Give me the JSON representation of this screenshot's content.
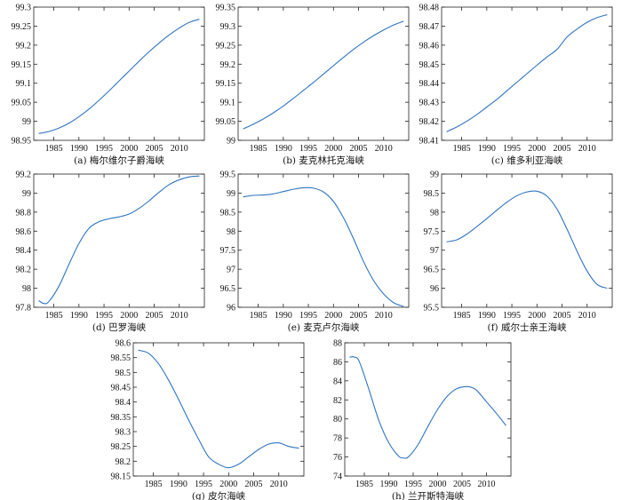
{
  "chart_data": [
    {
      "type": "line",
      "caption": "(a) 梅尔维尔子爵海峡",
      "xlim": [
        1981,
        2015
      ],
      "ylim": [
        98.95,
        99.3
      ],
      "xticks": [
        "1985",
        "1990",
        "1995",
        "2000",
        "2005",
        "2010"
      ],
      "yticks": [
        "98.95",
        "99",
        "99.05",
        "99.1",
        "99.15",
        "99.2",
        "99.25",
        "99.3"
      ],
      "series": [
        {
          "color": "#2f74c0",
          "x": [
            1982,
            1984,
            1986,
            1988,
            1990,
            1992,
            1994,
            1996,
            1998,
            2000,
            2002,
            2004,
            2006,
            2008,
            2010,
            2012,
            2014
          ],
          "y": [
            98.968,
            98.973,
            98.982,
            98.995,
            99.012,
            99.032,
            99.055,
            99.08,
            99.106,
            99.132,
            99.158,
            99.183,
            99.206,
            99.227,
            99.245,
            99.26,
            99.268
          ]
        }
      ]
    },
    {
      "type": "line",
      "caption": "(b) 麦克林托克海峡",
      "xlim": [
        1981,
        2015
      ],
      "ylim": [
        99,
        99.35
      ],
      "xticks": [
        "1985",
        "1990",
        "1995",
        "2000",
        "2005",
        "2010"
      ],
      "yticks": [
        "99",
        "99.05",
        "99.1",
        "99.15",
        "99.2",
        "99.25",
        "99.3",
        "99.35"
      ],
      "series": [
        {
          "color": "#2f74c0",
          "x": [
            1982,
            1984,
            1986,
            1988,
            1990,
            1992,
            1994,
            1996,
            1998,
            2000,
            2002,
            2004,
            2006,
            2008,
            2010,
            2012,
            2014
          ],
          "y": [
            99.03,
            99.042,
            99.056,
            99.072,
            99.09,
            99.11,
            99.131,
            99.152,
            99.174,
            99.196,
            99.218,
            99.239,
            99.258,
            99.275,
            99.29,
            99.303,
            99.313
          ]
        }
      ]
    },
    {
      "type": "line",
      "caption": "(c) 维多利亚海峡",
      "xlim": [
        1981,
        2015
      ],
      "ylim": [
        98.41,
        98.48
      ],
      "xticks": [
        "1985",
        "1990",
        "1995",
        "2000",
        "2005",
        "2010"
      ],
      "yticks": [
        "98.41",
        "98.42",
        "98.43",
        "98.44",
        "98.45",
        "98.46",
        "98.47",
        "98.48"
      ],
      "series": [
        {
          "color": "#2f74c0",
          "x": [
            1982,
            1984,
            1986,
            1988,
            1990,
            1992,
            1994,
            1996,
            1998,
            2000,
            2002,
            2004,
            2006,
            2008,
            2010,
            2012,
            2014
          ],
          "y": [
            98.4145,
            98.417,
            98.42,
            98.4235,
            98.4275,
            98.4315,
            98.436,
            98.4405,
            98.445,
            98.4495,
            98.4538,
            98.4578,
            98.4643,
            98.4685,
            98.472,
            98.4745,
            98.476
          ]
        }
      ]
    },
    {
      "type": "line",
      "caption": "(d) 巴罗海峡",
      "xlim": [
        1981,
        2015
      ],
      "ylim": [
        97.8,
        99.2
      ],
      "xticks": [
        "1985",
        "1990",
        "1995",
        "2000",
        "2005",
        "2010"
      ],
      "yticks": [
        "97.8",
        "98",
        "98.2",
        "98.4",
        "98.6",
        "98.8",
        "99",
        "99.2"
      ],
      "series": [
        {
          "color": "#2f74c0",
          "x": [
            1982,
            1983,
            1984,
            1986,
            1988,
            1990,
            1992,
            1994,
            1996,
            1998,
            2000,
            2002,
            2004,
            2006,
            2008,
            2010,
            2012,
            2014
          ],
          "y": [
            97.87,
            97.84,
            97.86,
            98.02,
            98.25,
            98.47,
            98.63,
            98.7,
            98.73,
            98.75,
            98.78,
            98.84,
            98.92,
            99.01,
            99.09,
            99.14,
            99.17,
            99.18
          ]
        }
      ]
    },
    {
      "type": "line",
      "caption": "(e) 麦克卢尔海峡",
      "xlim": [
        1981,
        2015
      ],
      "ylim": [
        96,
        99.5
      ],
      "xticks": [
        "1985",
        "1990",
        "1995",
        "2000",
        "2005",
        "2010"
      ],
      "yticks": [
        "96",
        "96.5",
        "97",
        "97.5",
        "98",
        "98.5",
        "99",
        "99.5"
      ],
      "series": [
        {
          "color": "#2f74c0",
          "x": [
            1982,
            1984,
            1986,
            1988,
            1990,
            1992,
            1994,
            1996,
            1998,
            2000,
            2002,
            2004,
            2006,
            2008,
            2010,
            2012,
            2014
          ],
          "y": [
            98.9,
            98.94,
            98.95,
            98.98,
            99.04,
            99.1,
            99.14,
            99.13,
            99.03,
            98.78,
            98.35,
            97.8,
            97.2,
            96.7,
            96.35,
            96.12,
            96.02
          ]
        }
      ]
    },
    {
      "type": "line",
      "caption": "(f) 威尔士亲王海峡",
      "xlim": [
        1981,
        2015
      ],
      "ylim": [
        95.5,
        99
      ],
      "xticks": [
        "1985",
        "1990",
        "1995",
        "2000",
        "2005",
        "2010"
      ],
      "yticks": [
        "95.5",
        "96",
        "96.5",
        "97",
        "97.5",
        "98",
        "98.5",
        "99"
      ],
      "series": [
        {
          "color": "#2f74c0",
          "x": [
            1982,
            1984,
            1986,
            1988,
            1990,
            1992,
            1994,
            1996,
            1998,
            2000,
            2002,
            2004,
            2006,
            2008,
            2010,
            2012,
            2014
          ],
          "y": [
            97.22,
            97.27,
            97.42,
            97.62,
            97.83,
            98.05,
            98.26,
            98.43,
            98.53,
            98.55,
            98.42,
            98.08,
            97.55,
            96.97,
            96.45,
            96.1,
            96.0
          ]
        }
      ]
    },
    {
      "type": "line",
      "caption": "(g) 皮尔海峡",
      "xlim": [
        1981,
        2015
      ],
      "ylim": [
        98.15,
        98.6
      ],
      "xticks": [
        "1985",
        "1990",
        "1995",
        "2000",
        "2005",
        "2010"
      ],
      "yticks": [
        "98.15",
        "98.2",
        "98.25",
        "98.3",
        "98.35",
        "98.4",
        "98.45",
        "98.5",
        "98.55",
        "98.6"
      ],
      "series": [
        {
          "color": "#2f74c0",
          "x": [
            1982,
            1984,
            1986,
            1988,
            1990,
            1992,
            1994,
            1996,
            1998,
            2000,
            2002,
            2004,
            2006,
            2008,
            2010,
            2012,
            2014
          ],
          "y": [
            98.575,
            98.565,
            98.53,
            98.475,
            98.41,
            98.34,
            98.275,
            98.215,
            98.19,
            98.178,
            98.19,
            98.215,
            98.24,
            98.258,
            98.262,
            98.25,
            98.244
          ]
        }
      ]
    },
    {
      "type": "line",
      "caption": "(h) 兰开斯特海峡",
      "xlim": [
        1981,
        2015
      ],
      "ylim": [
        74,
        88
      ],
      "xticks": [
        "1985",
        "1990",
        "1995",
        "2000",
        "2005",
        "2010"
      ],
      "yticks": [
        "74",
        "76",
        "78",
        "80",
        "82",
        "84",
        "86",
        "88"
      ],
      "series": [
        {
          "color": "#2f74c0",
          "x": [
            1982,
            1983,
            1984,
            1986,
            1988,
            1990,
            1992,
            1993,
            1994,
            1996,
            1998,
            2000,
            2002,
            2004,
            2006,
            2007,
            2008,
            2010,
            2012,
            2014
          ],
          "y": [
            86.5,
            86.5,
            86.0,
            83.0,
            79.8,
            77.5,
            76.1,
            75.9,
            76.0,
            77.3,
            79.2,
            81.0,
            82.4,
            83.2,
            83.4,
            83.3,
            83.0,
            81.8,
            80.6,
            79.3
          ]
        }
      ]
    }
  ]
}
